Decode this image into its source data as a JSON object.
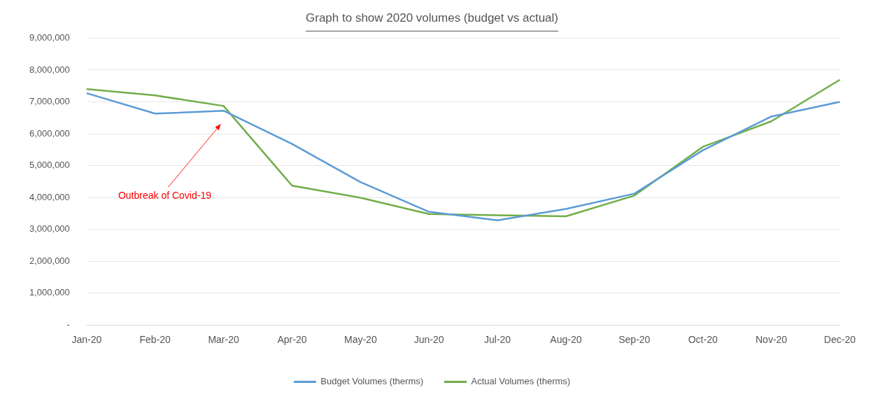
{
  "chart_data": {
    "type": "line",
    "title": "Graph to show 2020 volumes (budget vs actual)",
    "categories": [
      "Jan-20",
      "Feb-20",
      "Mar-20",
      "Apr-20",
      "May-20",
      "Jun-20",
      "Jul-20",
      "Aug-20",
      "Sep-20",
      "Oct-20",
      "Nov-20",
      "Dec-20"
    ],
    "series": [
      {
        "name": "Budget Volumes (therms)",
        "color": "#5b9bd5",
        "values": [
          7270000,
          6630000,
          6720000,
          5680000,
          4480000,
          3550000,
          3280000,
          3640000,
          4120000,
          5480000,
          6540000,
          7000000
        ]
      },
      {
        "name": "Actual Volumes (therms)",
        "color": "#70ad47",
        "values": [
          7400000,
          7200000,
          6870000,
          4370000,
          3990000,
          3480000,
          3440000,
          3410000,
          4060000,
          5590000,
          6390000,
          7690000
        ]
      }
    ],
    "ylim": [
      0,
      9000000
    ],
    "yticks": [
      {
        "value": 0,
        "label": "-"
      },
      {
        "value": 1000000,
        "label": "1,000,000"
      },
      {
        "value": 2000000,
        "label": "2,000,000"
      },
      {
        "value": 3000000,
        "label": "3,000,000"
      },
      {
        "value": 4000000,
        "label": "4,000,000"
      },
      {
        "value": 5000000,
        "label": "5,000,000"
      },
      {
        "value": 6000000,
        "label": "6,000,000"
      },
      {
        "value": 7000000,
        "label": "7,000,000"
      },
      {
        "value": 8000000,
        "label": "8,000,000"
      },
      {
        "value": 9000000,
        "label": "9,000,000"
      }
    ],
    "grid": "y",
    "legend": "bottom",
    "marker": "none",
    "line_style": "solid",
    "annotations": [
      "Outbreak of Covid-19"
    ]
  }
}
